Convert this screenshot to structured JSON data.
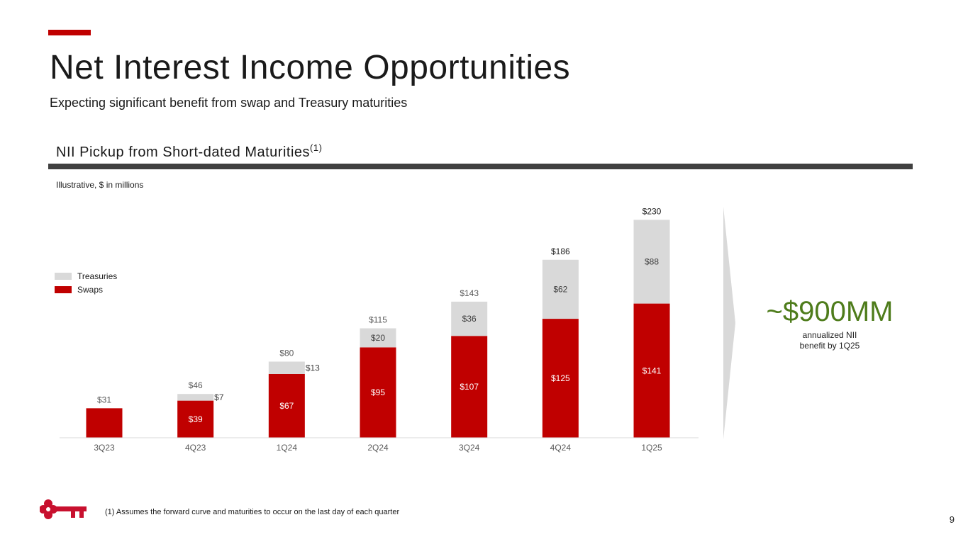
{
  "header": {
    "title": "Net Interest Income Opportunities",
    "subtitle": "Expecting significant benefit from swap and Treasury maturities"
  },
  "section": {
    "title": "NII Pickup from Short-dated Maturities",
    "title_footnote_marker": "(1)",
    "note": "Illustrative, $ in millions"
  },
  "callout": {
    "value": "~$900MM",
    "line1": "annualized NII",
    "line2": "benefit by 1Q25"
  },
  "footnote": "(1) Assumes the forward curve and maturities to occur on the last day of each quarter",
  "page_number": "9",
  "colors": {
    "accent_red": "#c00000",
    "treasuries_gray": "#d9d9d9",
    "callout_green": "#4e7c1b",
    "rule_dark": "#404040"
  },
  "icons": {
    "logo": "key-logo-icon"
  },
  "chart_data": {
    "type": "bar",
    "stacked": true,
    "categories": [
      "3Q23",
      "4Q23",
      "1Q24",
      "2Q24",
      "3Q24",
      "4Q24",
      "1Q25"
    ],
    "series": [
      {
        "name": "Swaps",
        "values": [
          31,
          39,
          67,
          95,
          107,
          125,
          141
        ],
        "labels": [
          "",
          "$39",
          "$67",
          "$95",
          "$107",
          "$125",
          "$141"
        ]
      },
      {
        "name": "Treasuries",
        "values": [
          0,
          7,
          13,
          20,
          36,
          62,
          88
        ],
        "labels": [
          "",
          "$7",
          "$13",
          "$20",
          "$36",
          "$62",
          "$88"
        ]
      }
    ],
    "totals": [
      31,
      46,
      80,
      115,
      143,
      186,
      230
    ],
    "total_labels": [
      "$31",
      "$46",
      "$80",
      "$115",
      "$143",
      "$186",
      "$230"
    ],
    "legend": [
      "Treasuries",
      "Swaps"
    ],
    "legend_position": "top-left",
    "ylim": [
      0,
      230
    ],
    "grid": false,
    "xlabel": "",
    "ylabel": ""
  }
}
